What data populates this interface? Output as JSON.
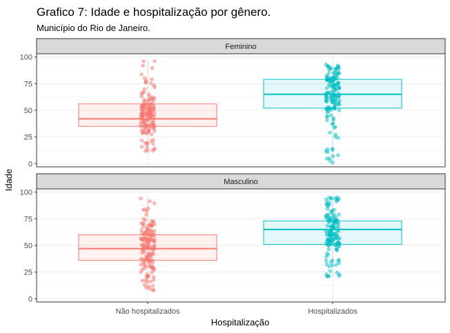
{
  "chart_data": {
    "type": "box",
    "title": "Grafico 7: Idade e hospitalização por gênero.",
    "subtitle": "Município do Rio de Janeiro.",
    "xlabel": "Hospitalização",
    "ylabel": "Idade",
    "categories": [
      "Não hospitalizados",
      "Hospitalizados"
    ],
    "ylim": [
      -3,
      103
    ],
    "yticks": [
      0,
      25,
      50,
      75,
      100
    ],
    "grid": true,
    "colors": {
      "Não hospitalizados": "#F8766D",
      "Hospitalizados": "#00BFC4"
    },
    "panels": [
      {
        "label": "Feminino",
        "boxes": [
          {
            "category": "Não hospitalizados",
            "min": 12,
            "q1": 35,
            "median": 42,
            "q3": 56,
            "max": 96
          },
          {
            "category": "Hospitalizados",
            "min": 1,
            "q1": 52,
            "median": 65,
            "q3": 79,
            "max": 93
          }
        ]
      },
      {
        "label": "Masculino",
        "boxes": [
          {
            "category": "Não hospitalizados",
            "min": 8,
            "q1": 36,
            "median": 47,
            "q3": 60,
            "max": 94
          },
          {
            "category": "Hospitalizados",
            "min": 21,
            "q1": 51,
            "median": 65,
            "q3": 73,
            "max": 95
          }
        ]
      }
    ]
  }
}
